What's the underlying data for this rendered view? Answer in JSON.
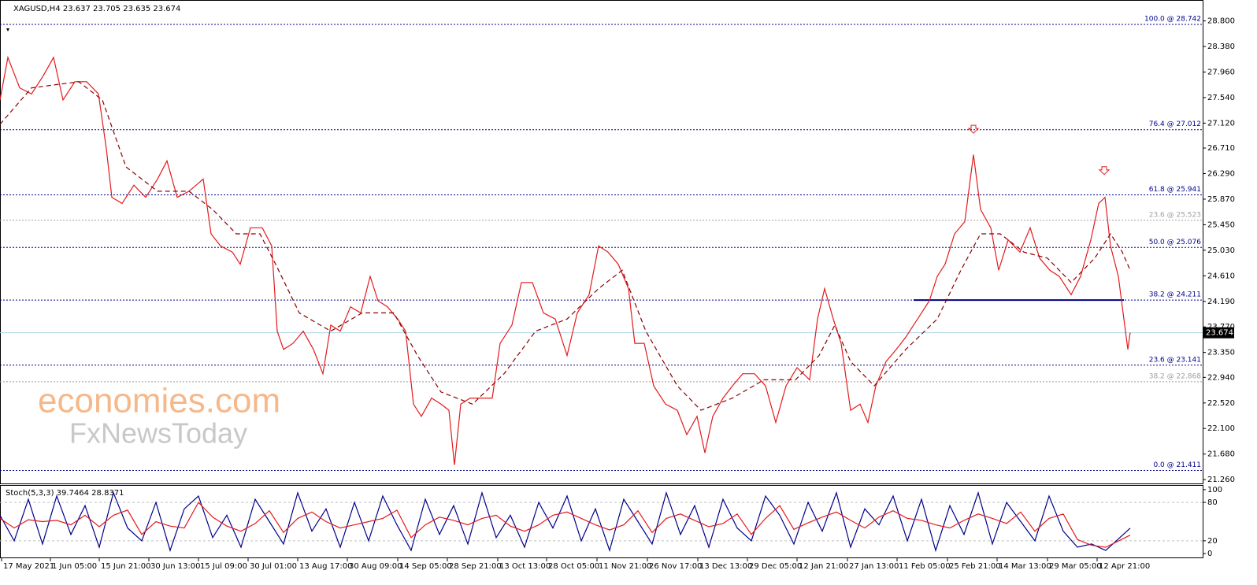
{
  "chart_data": [
    {
      "type": "line",
      "title": "XAGUSD,H4  23.637 23.705 23.635 23.674",
      "xlim": [
        0,
        1527
      ],
      "ylim": [
        21.21,
        29.092
      ],
      "xticks": [
        {
          "value": 2,
          "label": "17 May 2021"
        },
        {
          "value": 64,
          "label": "1 Jun 05:00"
        },
        {
          "value": 126,
          "label": "15 Jun 21:00"
        },
        {
          "value": 189,
          "label": "30 Jun 13:00"
        },
        {
          "value": 252,
          "label": "15 Jul 09:00"
        },
        {
          "value": 315,
          "label": "30 Jul 01:00"
        },
        {
          "value": 378,
          "label": "13 Aug 17:00"
        },
        {
          "value": 441,
          "label": "30 Aug 09:00"
        },
        {
          "value": 505,
          "label": "14 Sep 05:00"
        },
        {
          "value": 568,
          "label": "28 Sep 21:00"
        },
        {
          "value": 632,
          "label": "13 Oct 13:00"
        },
        {
          "value": 694,
          "label": "28 Oct 05:00"
        },
        {
          "value": 758,
          "label": "11 Nov 21:00"
        },
        {
          "value": 822,
          "label": "26 Nov 17:00"
        },
        {
          "value": 886,
          "label": "13 Dec 13:00"
        },
        {
          "value": 949,
          "label": "29 Dec 05:00"
        },
        {
          "value": 1012,
          "label": "12 Jan 21:00"
        },
        {
          "value": 1076,
          "label": "27 Jan 13:00"
        },
        {
          "value": 1139,
          "label": "11 Feb 05:00"
        },
        {
          "value": 1203,
          "label": "25 Feb 21:00"
        },
        {
          "value": 1266,
          "label": "14 Mar 13:00"
        },
        {
          "value": 1330,
          "label": "29 Mar 05:00"
        },
        {
          "value": 1393,
          "label": "12 Apr 21:00"
        }
      ],
      "yticks": [
        {
          "value": 28.8,
          "label": "28.800"
        },
        {
          "value": 28.38,
          "label": "28.380"
        },
        {
          "value": 27.96,
          "label": "27.960"
        },
        {
          "value": 27.54,
          "label": "27.540"
        },
        {
          "value": 27.12,
          "label": "27.120"
        },
        {
          "value": 26.71,
          "label": "26.710"
        },
        {
          "value": 26.29,
          "label": "26.290"
        },
        {
          "value": 25.87,
          "label": "25.870"
        },
        {
          "value": 25.45,
          "label": "25.450"
        },
        {
          "value": 25.03,
          "label": "25.030"
        },
        {
          "value": 24.61,
          "label": "24.610"
        },
        {
          "value": 24.19,
          "label": "24.190"
        },
        {
          "value": 23.77,
          "label": "23.770"
        },
        {
          "value": 23.35,
          "label": "23.350"
        },
        {
          "value": 22.94,
          "label": "22.940"
        },
        {
          "value": 22.52,
          "label": "22.520"
        },
        {
          "value": 22.1,
          "label": "22.100"
        },
        {
          "value": 21.68,
          "label": "21.680"
        },
        {
          "value": 21.26,
          "label": "21.260"
        }
      ],
      "series": [
        {
          "name": "XAGUSD",
          "color": "#e31a1c",
          "style": "solid",
          "x": [
            0,
            10,
            25,
            40,
            55,
            68,
            80,
            95,
            110,
            125,
            135,
            142,
            155,
            170,
            185,
            200,
            212,
            225,
            240,
            258,
            268,
            280,
            295,
            305,
            318,
            333,
            345,
            352,
            360,
            372,
            385,
            398,
            410,
            420,
            432,
            445,
            458,
            470,
            480,
            492,
            505,
            515,
            525,
            535,
            548,
            560,
            570,
            577,
            585,
            597,
            612,
            625,
            635,
            650,
            662,
            676,
            690,
            705,
            720,
            733,
            748,
            760,
            772,
            785,
            798,
            806,
            818,
            830,
            845,
            860,
            872,
            885,
            895,
            905,
            918,
            930,
            943,
            958,
            972,
            985,
            998,
            1012,
            1028,
            1038,
            1047,
            1058,
            1068,
            1080,
            1092,
            1102,
            1112,
            1125,
            1138,
            1150,
            1165,
            1180,
            1190,
            1200,
            1212,
            1225,
            1236,
            1245,
            1258,
            1268,
            1280,
            1295,
            1308,
            1320,
            1333,
            1345,
            1360,
            1372,
            1385,
            1395,
            1403,
            1410,
            1420,
            1427,
            1432,
            1435
          ],
          "values": [
            27.5,
            28.2,
            27.7,
            27.6,
            27.9,
            28.2,
            27.5,
            27.8,
            27.8,
            27.6,
            26.7,
            25.9,
            25.8,
            26.1,
            25.9,
            26.2,
            26.5,
            25.9,
            26.0,
            26.2,
            25.3,
            25.1,
            25.0,
            24.8,
            25.4,
            25.4,
            25.1,
            23.7,
            23.4,
            23.5,
            23.7,
            23.4,
            23.0,
            23.8,
            23.7,
            24.1,
            24.0,
            24.6,
            24.2,
            24.1,
            23.9,
            23.7,
            22.5,
            22.3,
            22.6,
            22.5,
            22.4,
            21.5,
            22.5,
            22.6,
            22.6,
            22.6,
            23.5,
            23.8,
            24.5,
            24.5,
            24.0,
            23.9,
            23.3,
            24.0,
            24.3,
            25.1,
            25.0,
            24.8,
            24.4,
            23.5,
            23.5,
            22.8,
            22.5,
            22.4,
            22.0,
            22.3,
            21.7,
            22.3,
            22.6,
            22.8,
            23.0,
            23.0,
            22.8,
            22.2,
            22.8,
            23.1,
            22.9,
            23.9,
            24.4,
            23.9,
            23.5,
            22.4,
            22.5,
            22.2,
            22.8,
            23.2,
            23.4,
            23.6,
            23.9,
            24.2,
            24.6,
            24.8,
            25.3,
            25.5,
            26.6,
            25.7,
            25.4,
            24.7,
            25.2,
            25.0,
            25.4,
            24.9,
            24.7,
            24.6,
            24.3,
            24.6,
            25.2,
            25.8,
            25.9,
            25.1,
            24.6,
            23.9,
            23.4,
            23.674
          ]
        },
        {
          "name": "MA",
          "color": "#8b0000",
          "style": "dashed",
          "x": [
            0,
            40,
            100,
            130,
            160,
            200,
            240,
            270,
            300,
            330,
            350,
            380,
            420,
            460,
            500,
            530,
            560,
            600,
            640,
            680,
            720,
            760,
            790,
            820,
            860,
            890,
            930,
            970,
            1010,
            1040,
            1060,
            1080,
            1110,
            1150,
            1190,
            1220,
            1245,
            1270,
            1300,
            1330,
            1360,
            1390,
            1410,
            1425,
            1435
          ],
          "values": [
            27.1,
            27.7,
            27.8,
            27.5,
            26.4,
            26.0,
            26.0,
            25.7,
            25.3,
            25.3,
            24.8,
            24.0,
            23.7,
            24.0,
            24.0,
            23.3,
            22.7,
            22.5,
            23.0,
            23.7,
            23.9,
            24.4,
            24.7,
            23.7,
            22.8,
            22.4,
            22.6,
            22.9,
            22.9,
            23.3,
            23.8,
            23.2,
            22.8,
            23.4,
            23.9,
            24.7,
            25.3,
            25.3,
            25.0,
            24.9,
            24.5,
            24.9,
            25.3,
            25.0,
            24.7
          ]
        }
      ],
      "current_price": 23.674,
      "fib_levels": [
        {
          "label": "100.0 @ 28.742",
          "value": 28.742,
          "color": "#00008b"
        },
        {
          "label": "76.4 @ 27.012",
          "value": 27.012,
          "color": "#00008b"
        },
        {
          "label": "61.8 @ 25.941",
          "value": 25.941,
          "color": "#00008b"
        },
        {
          "label": "23.6 @ 25.523",
          "value": 25.523,
          "color": "#a0a0a0"
        },
        {
          "label": "50.0 @ 25.076",
          "value": 25.076,
          "color": "#00008b"
        },
        {
          "label": "38.2 @ 24.211",
          "value": 24.211,
          "color": "#00008b"
        },
        {
          "label": "23.6 @ 23.141",
          "value": 23.141,
          "color": "#00008b"
        },
        {
          "label": "38.2 @ 22.868",
          "value": 22.868,
          "color": "#a0a0a0"
        },
        {
          "label": "0.0 @ 21.411",
          "value": 21.411,
          "color": "#00008b"
        }
      ],
      "support_line": {
        "value": 24.211,
        "x": [
          1160,
          1427
        ]
      },
      "arrows": [
        {
          "x": 1236,
          "y": 26.98
        },
        {
          "x": 1402,
          "y": 26.3
        }
      ],
      "watermark": [
        "economies.com",
        "FxNewsToday"
      ]
    },
    {
      "type": "line",
      "title": "Stoch(5,3,3) 39.7464 28.8371",
      "xlim": [
        0,
        1527
      ],
      "ylim": [
        -6,
        106
      ],
      "yticks": [
        100,
        80,
        20,
        0
      ],
      "series": [
        {
          "name": "Main",
          "color": "#00008b",
          "style": "solid",
          "x": [
            0,
            18,
            36,
            54,
            72,
            90,
            108,
            126,
            144,
            162,
            180,
            198,
            216,
            234,
            252,
            270,
            288,
            306,
            324,
            342,
            360,
            378,
            396,
            414,
            432,
            450,
            468,
            486,
            504,
            522,
            540,
            558,
            576,
            594,
            612,
            630,
            648,
            666,
            684,
            702,
            720,
            738,
            756,
            774,
            792,
            810,
            828,
            846,
            864,
            882,
            900,
            918,
            936,
            954,
            972,
            990,
            1008,
            1026,
            1044,
            1062,
            1080,
            1098,
            1116,
            1134,
            1152,
            1170,
            1188,
            1206,
            1224,
            1242,
            1260,
            1278,
            1296,
            1314,
            1332,
            1350,
            1368,
            1386,
            1404,
            1435
          ],
          "values": [
            60,
            20,
            85,
            15,
            90,
            30,
            75,
            10,
            95,
            40,
            20,
            80,
            5,
            70,
            90,
            25,
            60,
            10,
            85,
            50,
            15,
            95,
            35,
            70,
            10,
            80,
            20,
            90,
            45,
            5,
            85,
            30,
            75,
            15,
            95,
            25,
            60,
            10,
            80,
            40,
            90,
            20,
            70,
            5,
            85,
            50,
            15,
            95,
            30,
            75,
            10,
            85,
            40,
            20,
            90,
            60,
            15,
            80,
            35,
            95,
            10,
            70,
            45,
            90,
            20,
            85,
            5,
            75,
            30,
            95,
            15,
            80,
            50,
            20,
            90,
            35,
            10,
            15,
            5,
            39.7464
          ]
        },
        {
          "name": "Signal",
          "color": "#e31a1c",
          "style": "solid",
          "x": [
            0,
            18,
            36,
            54,
            72,
            90,
            108,
            126,
            144,
            162,
            180,
            198,
            216,
            234,
            252,
            270,
            288,
            306,
            324,
            342,
            360,
            378,
            396,
            414,
            432,
            450,
            468,
            486,
            504,
            522,
            540,
            558,
            576,
            594,
            612,
            630,
            648,
            666,
            684,
            702,
            720,
            738,
            756,
            774,
            792,
            810,
            828,
            846,
            864,
            882,
            900,
            918,
            936,
            954,
            972,
            990,
            1008,
            1026,
            1044,
            1062,
            1080,
            1098,
            1116,
            1134,
            1152,
            1170,
            1188,
            1206,
            1224,
            1242,
            1260,
            1278,
            1296,
            1314,
            1332,
            1350,
            1368,
            1386,
            1404,
            1435
          ],
          "values": [
            55,
            40,
            53,
            50,
            52,
            45,
            60,
            42,
            60,
            68,
            30,
            50,
            43,
            40,
            80,
            57,
            43,
            35,
            47,
            67,
            33,
            55,
            65,
            50,
            40,
            45,
            50,
            55,
            68,
            25,
            45,
            57,
            52,
            45,
            55,
            60,
            43,
            35,
            45,
            60,
            65,
            55,
            45,
            37,
            45,
            67,
            33,
            55,
            62,
            52,
            42,
            47,
            62,
            30,
            55,
            75,
            38,
            48,
            57,
            65,
            52,
            40,
            57,
            67,
            55,
            52,
            45,
            40,
            52,
            62,
            55,
            47,
            65,
            35,
            55,
            62,
            22,
            13,
            10,
            28.8371
          ]
        }
      ]
    }
  ]
}
